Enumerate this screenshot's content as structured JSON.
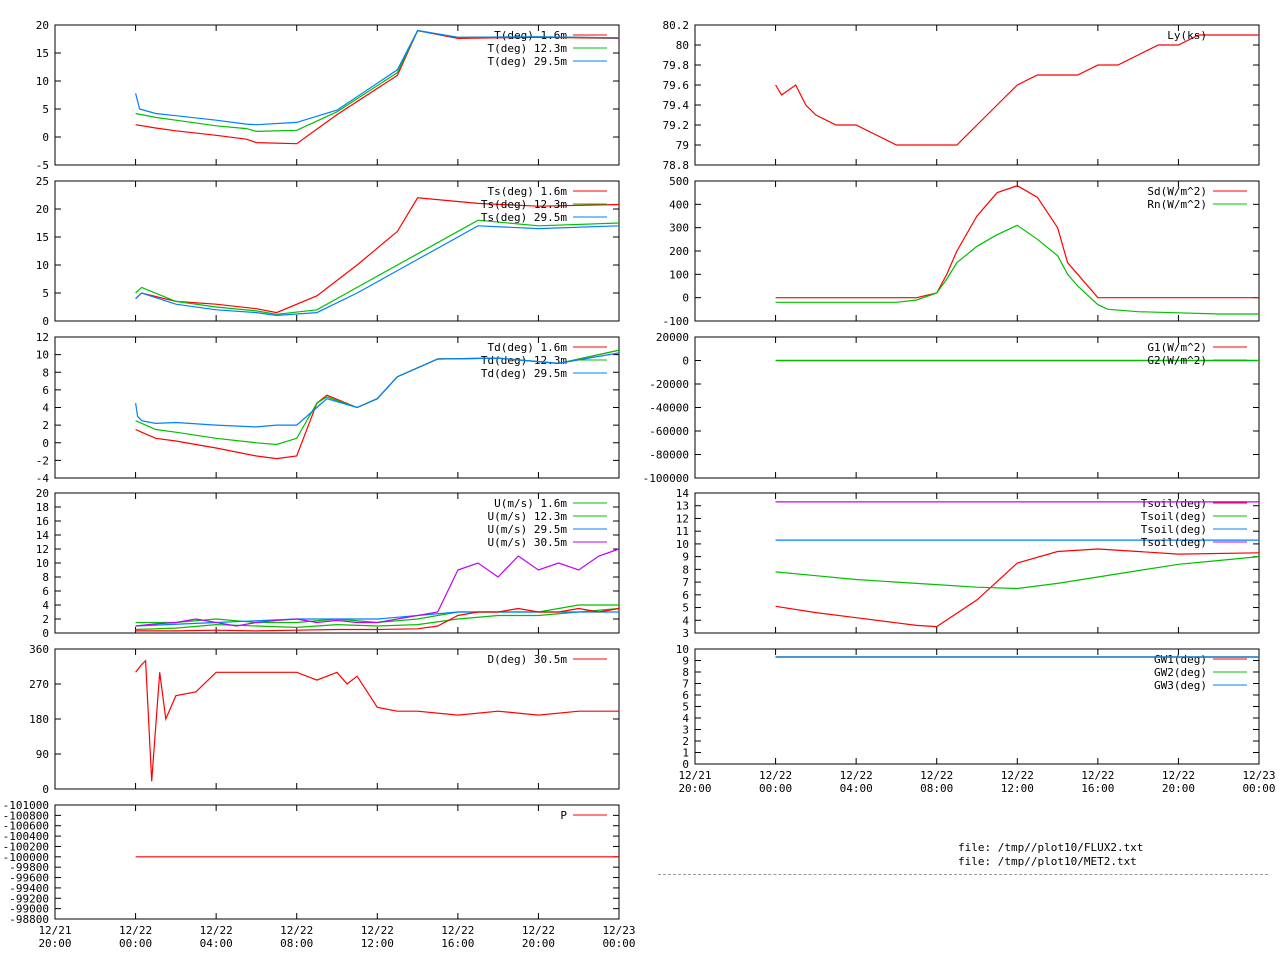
{
  "colors": {
    "red": "#ff0000",
    "green": "#00c000",
    "blue": "#0080ff",
    "magenta": "#c000ff"
  },
  "files": [
    "file: /tmp//plot10/FLUX2.txt",
    "file: /tmp//plot10/MET2.txt"
  ],
  "chart_data": [
    {
      "id": "T",
      "type": "line",
      "yticks": [
        "20",
        "15",
        "10",
        "5",
        "0",
        "-5"
      ],
      "ylim": [
        -5,
        20
      ],
      "series": [
        {
          "name": "T(deg)  1.6m",
          "color": "red",
          "x": [
            0,
            1,
            2,
            4,
            5.5,
            6,
            8,
            10,
            13,
            14,
            16,
            20,
            24
          ],
          "y": [
            2.2,
            1.6,
            1.1,
            0.3,
            -0.4,
            -1,
            -1.2,
            4,
            11,
            19,
            17.6,
            17.8,
            17.6
          ]
        },
        {
          "name": "T(deg) 12.3m",
          "color": "green",
          "x": [
            0,
            1,
            2,
            4,
            5.5,
            6,
            8,
            10,
            13,
            14,
            16,
            20,
            24
          ],
          "y": [
            4.2,
            3.5,
            3,
            2,
            1.5,
            1,
            1.2,
            4.5,
            11.5,
            19,
            17.8,
            17.9,
            17.7
          ]
        },
        {
          "name": "T(deg) 29.5m",
          "color": "blue",
          "x": [
            0,
            0.2,
            1,
            2,
            4,
            5.5,
            6,
            8,
            10,
            13,
            14,
            16,
            20,
            24
          ],
          "y": [
            7.8,
            5,
            4.2,
            3.8,
            3,
            2.3,
            2.2,
            2.6,
            4.8,
            12,
            19,
            17.8,
            17.9,
            17.7
          ]
        }
      ]
    },
    {
      "id": "Ts",
      "type": "line",
      "yticks": [
        "25",
        "20",
        "15",
        "10",
        "5",
        "0"
      ],
      "ylim": [
        0,
        25
      ],
      "series": [
        {
          "name": "Ts(deg)  1.6m",
          "color": "red",
          "x": [
            0,
            0.3,
            2,
            4,
            6,
            7,
            9,
            11,
            13,
            14,
            17,
            20,
            24
          ],
          "y": [
            4,
            5,
            3.5,
            3,
            2.2,
            1.5,
            4.5,
            10,
            16,
            22,
            21,
            20.5,
            20.8
          ]
        },
        {
          "name": "Ts(deg) 12.3m",
          "color": "green",
          "x": [
            0,
            0.3,
            2,
            4,
            6,
            7,
            9,
            11,
            13,
            14,
            17,
            20,
            24
          ],
          "y": [
            5,
            6,
            3.5,
            2.5,
            1.8,
            1.2,
            2,
            6,
            10,
            12,
            18,
            17,
            17.5
          ]
        },
        {
          "name": "Ts(deg) 29.5m",
          "color": "blue",
          "x": [
            0,
            0.3,
            2,
            4,
            6,
            7,
            9,
            11,
            13,
            14,
            17,
            20,
            24
          ],
          "y": [
            4,
            5,
            3,
            2,
            1.5,
            1,
            1.5,
            5,
            9,
            11,
            17,
            16.5,
            17
          ]
        }
      ]
    },
    {
      "id": "Td",
      "type": "line",
      "yticks": [
        "12",
        "10",
        "8",
        "6",
        "4",
        "2",
        "0",
        "-2",
        "-4"
      ],
      "ylim": [
        -4,
        12
      ],
      "series": [
        {
          "name": "Td(deg)  1.6m",
          "color": "red",
          "x": [
            0,
            0.3,
            1,
            2,
            4,
            6,
            7,
            8,
            9,
            9.5,
            11,
            12,
            13,
            15,
            18,
            21,
            24
          ],
          "y": [
            1.5,
            1.2,
            0.5,
            0.2,
            -0.6,
            -1.5,
            -1.8,
            -1.5,
            4.5,
            5.4,
            4,
            5,
            7.5,
            9.5,
            9.6,
            9,
            10.5
          ]
        },
        {
          "name": "Td(deg) 12.3m",
          "color": "green",
          "x": [
            0,
            1,
            2,
            4,
            6,
            7,
            8,
            9,
            9.5,
            11,
            12,
            13,
            15,
            18,
            21,
            24
          ],
          "y": [
            2.5,
            1.5,
            1.2,
            0.5,
            0,
            -0.2,
            0.5,
            4.5,
            5.2,
            4,
            5,
            7.5,
            9.5,
            9.6,
            9,
            10.5
          ]
        },
        {
          "name": "Td(deg) 29.5m",
          "color": "blue",
          "x": [
            0,
            0.1,
            0.3,
            1,
            2,
            4,
            6,
            7,
            8,
            9,
            9.5,
            11,
            12,
            13,
            15,
            18,
            21,
            24
          ],
          "y": [
            4.5,
            3,
            2.5,
            2.2,
            2.3,
            2,
            1.8,
            2,
            2,
            4,
            5,
            4,
            5,
            7.5,
            9.5,
            9.6,
            9,
            10.2
          ]
        }
      ]
    },
    {
      "id": "U",
      "type": "line",
      "yticks": [
        "20",
        "18",
        "16",
        "14",
        "12",
        "10",
        "8",
        "6",
        "4",
        "2",
        "0"
      ],
      "ylim": [
        0,
        20
      ],
      "series": [
        {
          "name": "U(m/s)  1.6m",
          "color": "green",
          "x": [
            0,
            2,
            4,
            6,
            8,
            10,
            12,
            14,
            16,
            18,
            20,
            22,
            24
          ],
          "y": [
            0.5,
            0.7,
            1.2,
            1,
            0.8,
            1.2,
            1,
            1.2,
            2,
            2.5,
            2.5,
            3,
            3.5
          ]
        },
        {
          "name": "U(m/s) 12.3m",
          "color": "green",
          "x": [
            0,
            2,
            4,
            6,
            8,
            10,
            12,
            14,
            16,
            18,
            20,
            22,
            24
          ],
          "y": [
            1.5,
            1.5,
            2,
            1.5,
            1.5,
            2,
            1.5,
            2,
            3,
            3,
            3,
            4,
            4
          ]
        },
        {
          "name": "U(m/s) 29.5m",
          "color": "blue",
          "x": [
            0,
            4,
            8,
            12,
            16,
            20,
            24
          ],
          "y": [
            1,
            1.5,
            2,
            2,
            3,
            3,
            3
          ]
        },
        {
          "name": "U(m/s) 30.5m",
          "color": "magenta",
          "x": [
            0,
            1,
            2,
            3,
            4,
            5,
            6,
            7,
            8,
            9,
            10,
            11,
            12,
            13,
            14,
            15,
            16,
            17,
            18,
            19,
            20,
            21,
            22,
            23,
            24
          ],
          "y": [
            1,
            1.3,
            1.5,
            2,
            1.5,
            1,
            1.5,
            1.8,
            2,
            1.5,
            1.8,
            1.5,
            1.5,
            2,
            2.5,
            3,
            9,
            10,
            8,
            11,
            9,
            10,
            9,
            11,
            12
          ]
        },
        {
          "name": "",
          "color": "red",
          "x": [
            0,
            2,
            4,
            6,
            8,
            10,
            12,
            14,
            15,
            16,
            17,
            18,
            19,
            20,
            21,
            22,
            23,
            24
          ],
          "y": [
            0.3,
            0.3,
            0.4,
            0.3,
            0.4,
            0.5,
            0.5,
            0.6,
            1,
            2.5,
            3,
            3,
            3.5,
            3,
            3,
            3.5,
            3,
            3.5
          ]
        }
      ]
    },
    {
      "id": "D",
      "type": "line",
      "yticks": [
        "360",
        "270",
        "180",
        "90",
        "0"
      ],
      "ylim": [
        0,
        360
      ],
      "series": [
        {
          "name": "D(deg)  30.5m",
          "color": "red",
          "x": [
            0,
            0.3,
            0.5,
            0.8,
            1.2,
            1.5,
            2,
            3,
            4,
            5,
            6,
            7,
            8,
            9,
            10,
            10.5,
            11,
            12,
            13,
            14,
            16,
            18,
            20,
            22,
            24
          ],
          "y": [
            300,
            320,
            330,
            20,
            300,
            180,
            240,
            250,
            300,
            300,
            300,
            300,
            300,
            280,
            300,
            270,
            290,
            210,
            200,
            200,
            190,
            200,
            190,
            200,
            200
          ]
        }
      ]
    },
    {
      "id": "P",
      "type": "line",
      "yticks": [
        "-101000",
        "-100800",
        "-100600",
        "-100400",
        "-100200",
        "-100000",
        "-99800",
        "-99600",
        "-99400",
        "-99200",
        "-99000",
        "-98800"
      ],
      "ylim": [
        -98800,
        -101000
      ],
      "series": [
        {
          "name": "P",
          "color": "red",
          "x": [
            0,
            24
          ],
          "y": [
            -100000,
            -100000
          ]
        }
      ]
    },
    {
      "id": "Ly",
      "type": "line",
      "yticks": [
        "80.2",
        "80",
        "79.8",
        "79.6",
        "79.4",
        "79.2",
        "79",
        "78.8"
      ],
      "ylim": [
        78.8,
        80.2
      ],
      "series": [
        {
          "name": "Ly(ks)",
          "color": "red",
          "x": [
            0,
            0.3,
            1,
            1.5,
            2,
            3,
            4,
            5,
            6,
            7,
            8,
            9,
            10,
            11,
            12,
            13,
            14,
            15,
            16,
            17,
            18,
            19,
            20,
            21,
            22,
            23,
            24
          ],
          "y": [
            79.6,
            79.5,
            79.6,
            79.4,
            79.3,
            79.2,
            79.2,
            79.1,
            79,
            79,
            79,
            79,
            79.2,
            79.4,
            79.6,
            79.7,
            79.7,
            79.7,
            79.8,
            79.8,
            79.9,
            80,
            80,
            80.1,
            80.1,
            80.1,
            80.1
          ]
        }
      ]
    },
    {
      "id": "Rad",
      "type": "line",
      "yticks": [
        "500",
        "400",
        "300",
        "200",
        "100",
        "0",
        "-100"
      ],
      "ylim": [
        -100,
        500
      ],
      "series": [
        {
          "name": "Sd(W/m^2)",
          "color": "red",
          "x": [
            0,
            2,
            4,
            6,
            7,
            8,
            8.5,
            9,
            10,
            11,
            12,
            13,
            14,
            14.5,
            15,
            16,
            16.5,
            18,
            20,
            24
          ],
          "y": [
            0,
            0,
            0,
            0,
            0,
            20,
            100,
            200,
            350,
            450,
            480,
            430,
            300,
            150,
            100,
            0,
            0,
            0,
            0,
            0
          ]
        },
        {
          "name": "Rn(W/m^2)",
          "color": "green",
          "x": [
            0,
            2,
            4,
            6,
            7,
            8,
            8.5,
            9,
            10,
            11,
            12,
            13,
            14,
            14.5,
            15,
            16,
            16.5,
            18,
            20,
            22,
            24
          ],
          "y": [
            -20,
            -20,
            -20,
            -20,
            -10,
            20,
            80,
            150,
            220,
            270,
            310,
            250,
            180,
            100,
            50,
            -30,
            -50,
            -60,
            -65,
            -70,
            -70
          ]
        }
      ]
    },
    {
      "id": "G",
      "type": "line",
      "yticks": [
        "20000",
        "0",
        "-20000",
        "-40000",
        "-60000",
        "-80000",
        "-100000"
      ],
      "ylim": [
        -100000,
        20000
      ],
      "series": [
        {
          "name": "G1(W/m^2)",
          "color": "red",
          "x": [
            0,
            24
          ],
          "y": [
            0,
            0
          ]
        },
        {
          "name": "G2(W/m^2)",
          "color": "green",
          "x": [
            0,
            24
          ],
          "y": [
            0,
            0
          ]
        }
      ]
    },
    {
      "id": "Tsoil",
      "type": "line",
      "yticks": [
        "14",
        "13",
        "12",
        "11",
        "10",
        "9",
        "8",
        "7",
        "6",
        "5",
        "4",
        "3"
      ],
      "ylim": [
        3,
        14
      ],
      "series": [
        {
          "name": "Tsoil(deg)",
          "color": "red",
          "x": [
            0,
            2,
            4,
            6,
            7,
            8,
            10,
            12,
            14,
            16,
            18,
            20,
            24
          ],
          "y": [
            5.1,
            4.6,
            4.2,
            3.8,
            3.6,
            3.5,
            5.6,
            8.5,
            9.4,
            9.6,
            9.4,
            9.2,
            9.3
          ]
        },
        {
          "name": "Tsoil(deg)",
          "color": "green",
          "x": [
            0,
            2,
            4,
            6,
            8,
            10,
            12,
            14,
            16,
            18,
            20,
            22,
            24
          ],
          "y": [
            7.8,
            7.5,
            7.2,
            7,
            6.8,
            6.6,
            6.5,
            6.9,
            7.4,
            7.9,
            8.4,
            8.7,
            9.0
          ]
        },
        {
          "name": "Tsoil(deg)",
          "color": "blue",
          "x": [
            0,
            24
          ],
          "y": [
            10.3,
            10.3
          ]
        },
        {
          "name": "Tsoil(deg)",
          "color": "magenta",
          "x": [
            0,
            24
          ],
          "y": [
            13.3,
            13.3
          ]
        }
      ]
    },
    {
      "id": "GW",
      "type": "line",
      "yticks": [
        "10",
        "9",
        "8",
        "7",
        "6",
        "5",
        "4",
        "3",
        "2",
        "1",
        "0"
      ],
      "ylim": [
        0,
        10
      ],
      "series": [
        {
          "name": "GW1(deg)",
          "color": "red",
          "x": [
            0,
            24
          ],
          "y": [
            9.3,
            9.3
          ]
        },
        {
          "name": "GW2(deg)",
          "color": "green",
          "x": [
            0,
            24
          ],
          "y": [
            9.3,
            9.3
          ]
        },
        {
          "name": "GW3(deg)",
          "color": "blue",
          "x": [
            0,
            24
          ],
          "y": [
            9.3,
            9.3
          ]
        }
      ]
    }
  ],
  "xaxis": {
    "type": "time",
    "ticks": [
      {
        "l1": "12/21",
        "l2": "20:00"
      },
      {
        "l1": "12/22",
        "l2": "00:00"
      },
      {
        "l1": "12/22",
        "l2": "04:00"
      },
      {
        "l1": "12/22",
        "l2": "08:00"
      },
      {
        "l1": "12/22",
        "l2": "12:00"
      },
      {
        "l1": "12/22",
        "l2": "16:00"
      },
      {
        "l1": "12/22",
        "l2": "20:00"
      },
      {
        "l1": "12/23",
        "l2": "00:00"
      }
    ]
  }
}
